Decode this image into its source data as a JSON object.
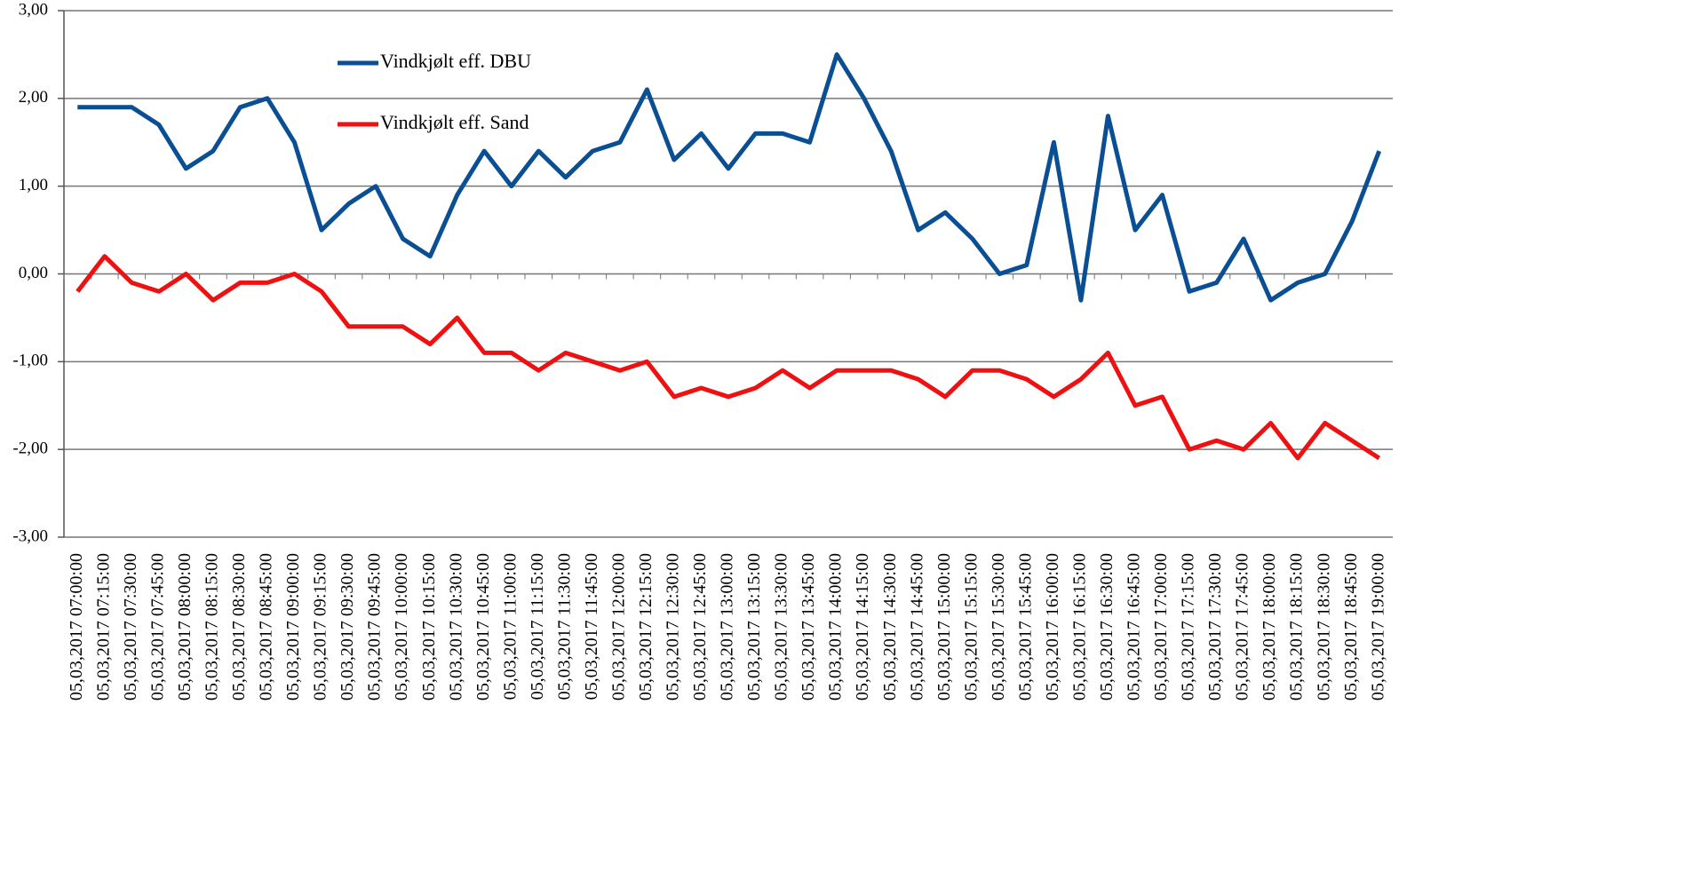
{
  "chart_data": {
    "type": "line",
    "categories": [
      "05,03,2017 07:00:00",
      "05,03,2017 07:15:00",
      "05,03,2017 07:30:00",
      "05,03,2017 07:45:00",
      "05,03,2017 08:00:00",
      "05,03,2017 08:15:00",
      "05,03,2017 08:30:00",
      "05,03,2017 08:45:00",
      "05,03,2017 09:00:00",
      "05,03,2017 09:15:00",
      "05,03,2017 09:30:00",
      "05,03,2017 09:45:00",
      "05,03,2017 10:00:00",
      "05,03,2017 10:15:00",
      "05,03,2017 10:30:00",
      "05,03,2017 10:45:00",
      "05,03,2017 11:00:00",
      "05,03,2017 11:15:00",
      "05,03,2017 11:30:00",
      "05,03,2017 11:45:00",
      "05,03,2017 12:00:00",
      "05,03,2017 12:15:00",
      "05,03,2017 12:30:00",
      "05,03,2017 12:45:00",
      "05,03,2017 13:00:00",
      "05,03,2017 13:15:00",
      "05,03,2017 13:30:00",
      "05,03,2017 13:45:00",
      "05,03,2017 14:00:00",
      "05,03,2017 14:15:00",
      "05,03,2017 14:30:00",
      "05,03,2017 14:45:00",
      "05,03,2017 15:00:00",
      "05,03,2017 15:15:00",
      "05,03,2017 15:30:00",
      "05,03,2017 15:45:00",
      "05,03,2017 16:00:00",
      "05,03,2017 16:15:00",
      "05,03,2017 16:30:00",
      "05,03,2017 16:45:00",
      "05,03,2017 17:00:00",
      "05,03,2017 17:15:00",
      "05,03,2017 17:30:00",
      "05,03,2017 17:45:00",
      "05,03,2017 18:00:00",
      "05,03,2017 18:15:00",
      "05,03,2017 18:30:00",
      "05,03,2017 18:45:00",
      "05,03,2017 19:00:00"
    ],
    "series": [
      {
        "name": "Vindkjølt eff. DBU",
        "color": "#0a4e94",
        "values": [
          1.9,
          1.9,
          1.9,
          1.7,
          1.2,
          1.4,
          1.9,
          2.0,
          1.5,
          0.5,
          0.8,
          1.0,
          0.4,
          0.2,
          0.9,
          1.4,
          1.0,
          1.4,
          1.1,
          1.4,
          1.5,
          2.1,
          1.3,
          1.6,
          1.2,
          1.6,
          1.6,
          1.5,
          2.5,
          2.0,
          1.4,
          0.5,
          0.7,
          0.4,
          0.0,
          0.1,
          1.5,
          -0.3,
          1.8,
          0.5,
          0.9,
          -0.2,
          -0.1,
          0.4,
          -0.3,
          -0.1,
          0.0,
          0.6,
          1.4
        ]
      },
      {
        "name": "Vindkjølt eff. Sand",
        "color": "#ee1111",
        "values": [
          -0.2,
          0.2,
          -0.1,
          -0.2,
          0.0,
          -0.3,
          -0.1,
          -0.1,
          0.0,
          -0.2,
          -0.6,
          -0.6,
          -0.6,
          -0.8,
          -0.5,
          -0.9,
          -0.9,
          -1.1,
          -0.9,
          -1.0,
          -1.1,
          -1.0,
          -1.4,
          -1.3,
          -1.4,
          -1.3,
          -1.1,
          -1.3,
          -1.1,
          -1.1,
          -1.1,
          -1.2,
          -1.4,
          -1.1,
          -1.1,
          -1.2,
          -1.4,
          -1.2,
          -0.9,
          -1.5,
          -1.4,
          -2.0,
          -1.9,
          -2.0,
          -1.7,
          -2.1,
          -1.7,
          -1.9,
          -2.1
        ]
      }
    ],
    "ylim": [
      -3,
      3
    ],
    "yticks": [
      {
        "value": 3,
        "label": "3,00"
      },
      {
        "value": 2,
        "label": "2,00"
      },
      {
        "value": 1,
        "label": "1,00"
      },
      {
        "value": 0,
        "label": "0,00"
      },
      {
        "value": -1,
        "label": "-1,00"
      },
      {
        "value": -2,
        "label": "-2,00"
      },
      {
        "value": -3,
        "label": "-3,00"
      }
    ],
    "grid": true
  }
}
